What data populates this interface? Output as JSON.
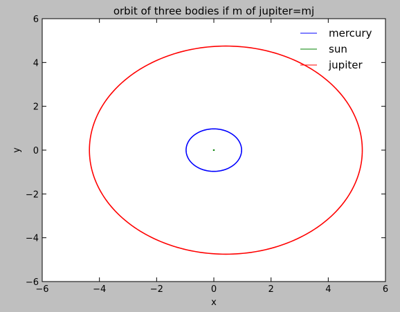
{
  "chart_data": {
    "type": "line",
    "title": "orbit of three bodies if m of jupiter=mj",
    "xlabel": "x",
    "ylabel": "y",
    "xlim": [
      -6,
      6
    ],
    "ylim": [
      -6,
      6
    ],
    "xticks": [
      -6,
      -4,
      -2,
      0,
      2,
      4,
      6
    ],
    "yticks": [
      -6,
      -4,
      -2,
      0,
      2,
      4,
      6
    ],
    "xtick_labels": [
      "−6",
      "−4",
      "−2",
      "0",
      "2",
      "4",
      "6"
    ],
    "ytick_labels": [
      "−6",
      "−4",
      "−2",
      "0",
      "2",
      "4",
      "6"
    ],
    "grid": false,
    "legend_position": "top-right",
    "series": [
      {
        "name": "mercury",
        "color": "#0000ff",
        "center": [
          0.0,
          0.0
        ],
        "semi_axis_x": 0.97,
        "semi_axis_y": 0.97
      },
      {
        "name": "sun",
        "color": "#008000",
        "center": [
          0.0,
          0.0
        ],
        "semi_axis_x": 0.02,
        "semi_axis_y": 0.02
      },
      {
        "name": "jupiter",
        "color": "#ff0000",
        "center": [
          0.42,
          0.0
        ],
        "semi_axis_x": 4.77,
        "semi_axis_y": 4.75
      }
    ]
  }
}
